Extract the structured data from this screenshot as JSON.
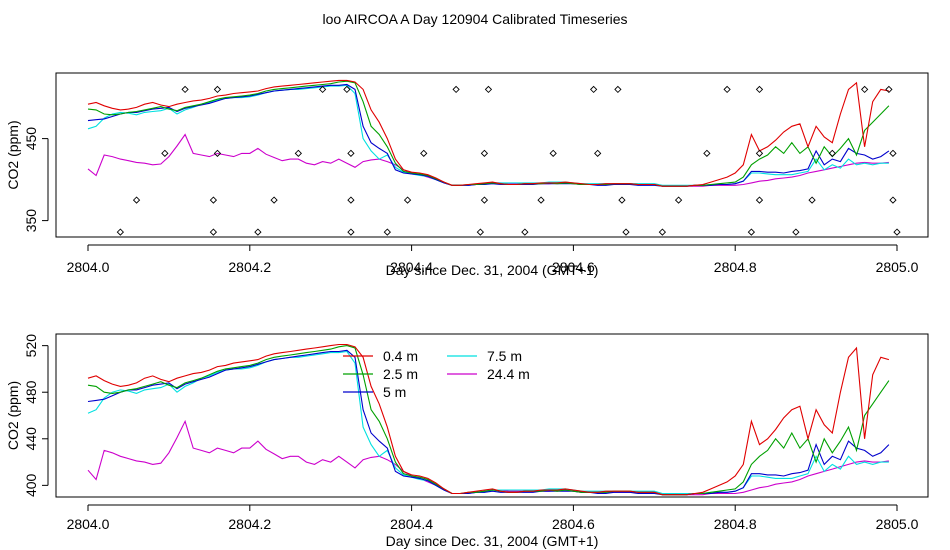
{
  "title": "loo AIRCOA A  Day 120904  Calibrated Timeseries",
  "chart_data": [
    {
      "type": "line",
      "panel": "top",
      "xlabel": "Day since Dec. 31, 2004 (GMT+1)",
      "ylabel": "CO2 (ppm)",
      "xlim": [
        2804.0,
        2805.0
      ],
      "ylim": [
        330,
        530
      ],
      "x_ticks": [
        2804.0,
        2804.2,
        2804.4,
        2804.6,
        2804.8,
        2805.0
      ],
      "x_tick_labels": [
        "2804.0",
        "2804.2",
        "2804.4",
        "2804.6",
        "2804.8",
        "2805.0"
      ],
      "y_ticks": [
        350,
        450
      ],
      "y_tick_labels": [
        "350",
        "450"
      ],
      "legend": "none",
      "markers": {
        "symbol": "diamond",
        "rows": [
          {
            "y": 510,
            "x": [
              2804.12,
              2804.16,
              2804.29,
              2804.32,
              2804.455,
              2804.495,
              2804.625,
              2804.655,
              2804.79,
              2804.83,
              2804.96,
              2804.99
            ]
          },
          {
            "y": 432,
            "x": [
              2804.095,
              2804.16,
              2804.26,
              2804.325,
              2804.415,
              2804.49,
              2804.575,
              2804.63,
              2804.765,
              2804.83,
              2804.92,
              2804.995
            ]
          },
          {
            "y": 375,
            "x": [
              2804.06,
              2804.155,
              2804.23,
              2804.325,
              2804.395,
              2804.49,
              2804.56,
              2804.66,
              2804.73,
              2804.83,
              2804.895,
              2804.995
            ]
          },
          {
            "y": 336,
            "x": [
              2804.04,
              2804.155,
              2804.21,
              2804.325,
              2804.37,
              2804.485,
              2804.54,
              2804.665,
              2804.71,
              2804.82,
              2804.875,
              2805.0
            ]
          }
        ]
      }
    },
    {
      "type": "line",
      "panel": "bottom",
      "xlabel": "Day since Dec. 31, 2004 (GMT+1)",
      "ylabel": "CO2 (ppm)",
      "xlim": [
        2804.0,
        2805.0
      ],
      "ylim": [
        390,
        530
      ],
      "x_ticks": [
        2804.0,
        2804.2,
        2804.4,
        2804.6,
        2804.8,
        2805.0
      ],
      "x_tick_labels": [
        "2804.0",
        "2804.2",
        "2804.4",
        "2804.6",
        "2804.8",
        "2805.0"
      ],
      "y_ticks": [
        400,
        440,
        480,
        520
      ],
      "y_tick_labels": [
        "400",
        "440",
        "480",
        "520"
      ],
      "legend": "top-center",
      "grid": false
    }
  ],
  "x": [
    2804.0,
    2804.01,
    2804.02,
    2804.03,
    2804.04,
    2804.05,
    2804.06,
    2804.07,
    2804.08,
    2804.09,
    2804.1,
    2804.11,
    2804.12,
    2804.13,
    2804.14,
    2804.15,
    2804.16,
    2804.17,
    2804.18,
    2804.19,
    2804.2,
    2804.21,
    2804.22,
    2804.23,
    2804.24,
    2804.25,
    2804.26,
    2804.27,
    2804.28,
    2804.29,
    2804.3,
    2804.31,
    2804.32,
    2804.33,
    2804.34,
    2804.35,
    2804.36,
    2804.37,
    2804.38,
    2804.39,
    2804.4,
    2804.41,
    2804.42,
    2804.43,
    2804.44,
    2804.45,
    2804.46,
    2804.47,
    2804.48,
    2804.49,
    2804.5,
    2804.51,
    2804.52,
    2804.53,
    2804.54,
    2804.55,
    2804.56,
    2804.57,
    2804.58,
    2804.59,
    2804.6,
    2804.61,
    2804.62,
    2804.63,
    2804.64,
    2804.65,
    2804.66,
    2804.67,
    2804.68,
    2804.69,
    2804.7,
    2804.71,
    2804.72,
    2804.73,
    2804.74,
    2804.75,
    2804.76,
    2804.77,
    2804.78,
    2804.79,
    2804.8,
    2804.81,
    2804.82,
    2804.83,
    2804.84,
    2804.85,
    2804.86,
    2804.87,
    2804.88,
    2804.89,
    2804.9,
    2804.91,
    2804.92,
    2804.93,
    2804.94,
    2804.95,
    2804.96,
    2804.97,
    2804.98,
    2804.99
  ],
  "series": [
    {
      "name": "0.4 m",
      "color": "#e00000",
      "values": [
        492,
        494,
        490,
        487,
        485,
        486,
        488,
        492,
        494,
        491,
        489,
        492,
        494,
        496,
        497,
        499,
        502,
        503,
        505,
        506,
        507,
        508,
        511,
        513,
        514,
        515,
        516,
        517,
        518,
        519,
        520,
        521,
        521,
        519,
        510,
        485,
        470,
        450,
        425,
        412,
        409,
        408,
        406,
        402,
        397,
        393,
        393,
        394,
        395,
        396,
        397,
        395,
        394,
        394,
        395,
        395,
        396,
        396,
        396,
        397,
        396,
        395,
        394,
        394,
        395,
        395,
        395,
        395,
        394,
        394,
        394,
        392,
        392,
        392,
        392,
        393,
        394,
        397,
        400,
        403,
        408,
        418,
        455,
        435,
        440,
        448,
        458,
        465,
        468,
        440,
        465,
        452,
        445,
        480,
        510,
        518,
        440,
        495,
        510,
        508
      ]
    },
    {
      "name": "2.5 m",
      "color": "#00a000",
      "values": [
        486,
        485,
        480,
        479,
        480,
        482,
        483,
        485,
        487,
        489,
        486,
        484,
        488,
        490,
        492,
        495,
        498,
        500,
        501,
        502,
        503,
        505,
        508,
        510,
        511,
        512,
        513,
        514,
        515,
        516,
        517,
        519,
        520,
        518,
        495,
        465,
        455,
        440,
        420,
        410,
        408,
        407,
        405,
        401,
        397,
        393,
        393,
        394,
        394,
        395,
        396,
        395,
        394,
        394,
        395,
        395,
        395,
        396,
        395,
        396,
        395,
        394,
        394,
        394,
        394,
        395,
        395,
        395,
        394,
        394,
        394,
        392,
        392,
        392,
        392,
        393,
        393,
        394,
        395,
        396,
        397,
        403,
        418,
        425,
        430,
        440,
        432,
        445,
        432,
        440,
        420,
        440,
        428,
        438,
        450,
        430,
        460,
        470,
        480,
        490
      ]
    },
    {
      "name": "5 m",
      "color": "#0000cc",
      "values": [
        472,
        473,
        474,
        477,
        480,
        482,
        482,
        484,
        486,
        487,
        488,
        483,
        487,
        489,
        491,
        493,
        496,
        499,
        500,
        501,
        502,
        504,
        506,
        508,
        509,
        510,
        511,
        512,
        513,
        514,
        515,
        515,
        516,
        510,
        465,
        445,
        438,
        432,
        412,
        408,
        407,
        406,
        404,
        400,
        396,
        393,
        393,
        393,
        394,
        394,
        395,
        394,
        394,
        394,
        394,
        394,
        395,
        395,
        395,
        395,
        395,
        394,
        394,
        393,
        393,
        394,
        394,
        394,
        393,
        393,
        393,
        392,
        392,
        392,
        392,
        393,
        393,
        393,
        394,
        394,
        395,
        398,
        410,
        410,
        409,
        409,
        408,
        410,
        411,
        413,
        435,
        418,
        425,
        422,
        438,
        432,
        430,
        425,
        428,
        435
      ]
    },
    {
      "name": "7.5 m",
      "color": "#00e0e0",
      "values": [
        462,
        465,
        475,
        480,
        482,
        481,
        479,
        482,
        483,
        484,
        487,
        480,
        485,
        488,
        492,
        494,
        497,
        499,
        500,
        500,
        501,
        503,
        506,
        508,
        509,
        510,
        510,
        511,
        512,
        513,
        514,
        514,
        515,
        505,
        450,
        435,
        425,
        430,
        415,
        409,
        407,
        405,
        404,
        400,
        396,
        393,
        393,
        393,
        394,
        394,
        396,
        396,
        396,
        396,
        396,
        396,
        396,
        397,
        397,
        397,
        396,
        395,
        395,
        395,
        395,
        395,
        395,
        395,
        395,
        395,
        395,
        393,
        393,
        393,
        393,
        393,
        393,
        394,
        394,
        394,
        395,
        398,
        408,
        408,
        407,
        406,
        406,
        406,
        408,
        410,
        425,
        412,
        418,
        414,
        425,
        418,
        420,
        418,
        420,
        420
      ]
    },
    {
      "name": "24.4 m",
      "color": "#cc00cc",
      "values": [
        413,
        405,
        430,
        428,
        425,
        423,
        421,
        420,
        418,
        419,
        428,
        441,
        455,
        432,
        430,
        428,
        432,
        430,
        428,
        432,
        432,
        438,
        431,
        427,
        423,
        425,
        425,
        420,
        418,
        422,
        420,
        425,
        420,
        415,
        422,
        424,
        425,
        422,
        418,
        412,
        408,
        406,
        403,
        400,
        396,
        393,
        393,
        393,
        394,
        395,
        396,
        396,
        395,
        395,
        395,
        395,
        395,
        395,
        396,
        396,
        395,
        394,
        394,
        394,
        394,
        394,
        394,
        394,
        394,
        394,
        394,
        392,
        392,
        392,
        392,
        392,
        392,
        393,
        393,
        393,
        393,
        394,
        396,
        398,
        399,
        401,
        402,
        403,
        405,
        408,
        410,
        412,
        414,
        416,
        418,
        420,
        421,
        420,
        420,
        421
      ]
    }
  ]
}
